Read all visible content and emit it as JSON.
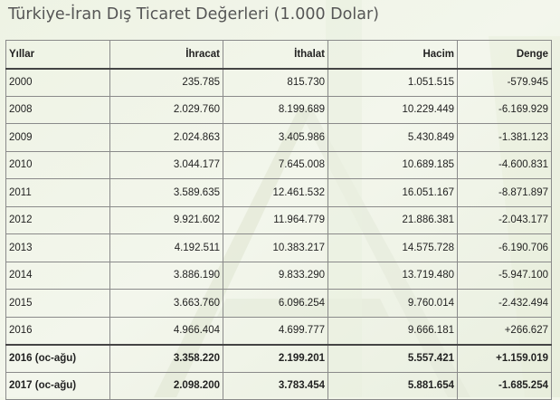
{
  "title": "Türkiye-İran Dış Ticaret Değerleri (1.000 Dolar)",
  "table": {
    "headers": [
      "Yıllar",
      "İhracat",
      "İthalat",
      "Hacim",
      "Denge"
    ],
    "rows": [
      [
        "2000",
        "235.785",
        "815.730",
        "1.051.515",
        "-579.945"
      ],
      [
        "2008",
        "2.029.760",
        "8.199.689",
        "10.229.449",
        "-6.169.929"
      ],
      [
        "2009",
        "2.024.863",
        "3.405.986",
        "5.430.849",
        "-1.381.123"
      ],
      [
        "2010",
        "3.044.177",
        "7.645.008",
        "10.689.185",
        "-4.600.831"
      ],
      [
        "2011",
        "3.589.635",
        "12.461.532",
        "16.051.167",
        "-8.871.897"
      ],
      [
        "2012",
        "9.921.602",
        "11.964.779",
        "21.886.381",
        "-2.043.177"
      ],
      [
        "2013",
        "4.192.511",
        "10.383.217",
        "14.575.728",
        "-6.190.706"
      ],
      [
        "2014",
        "3.886.190",
        "9.833.290",
        "13.719.480",
        "-5.947.100"
      ],
      [
        "2015",
        "3.663.760",
        "6.096.254",
        "9.760.014",
        "-2.432.494"
      ],
      [
        "2016",
        "4.966.404",
        "4.699.777",
        "9.666.181",
        "+266.627"
      ],
      [
        "2016 (oc-ağu)",
        "3.358.220",
        "2.199.201",
        "5.557.421",
        "+1.159.019"
      ],
      [
        "2017 (oc-ağu)",
        "2.098.200",
        "3.783.454",
        "5.881.654",
        "-1.685.254"
      ]
    ]
  },
  "colors": {
    "background": "#f1f5e8",
    "title_text": "#555555",
    "table_border": "#8a8a8a"
  }
}
